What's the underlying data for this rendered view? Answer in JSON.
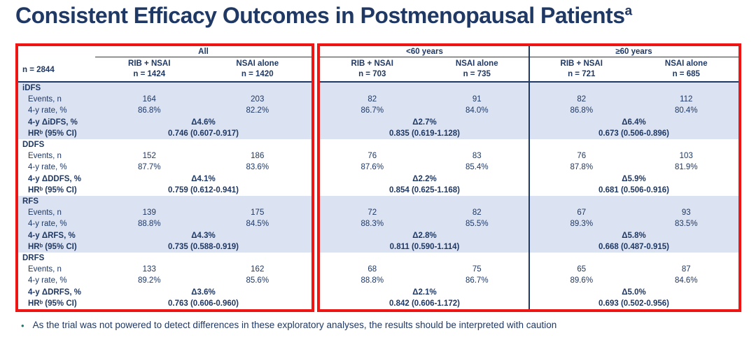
{
  "title": {
    "text": "Consistent Efficacy Outcomes in Postmenopausal Patients",
    "superscript": "a"
  },
  "colors": {
    "navy": "#1F3864",
    "stripe": "#DBE3F2",
    "red": "#EE1515",
    "bullet": "#1E7A6E"
  },
  "table": {
    "n_label": "n = 2844",
    "groups": [
      {
        "label": "All",
        "columns": [
          {
            "arm": "RIB + NSAI",
            "n": "n = 1424"
          },
          {
            "arm": "NSAI alone",
            "n": "n = 1420"
          }
        ]
      },
      {
        "label": "<60 years",
        "columns": [
          {
            "arm": "RIB + NSAI",
            "n": "n = 703"
          },
          {
            "arm": "NSAI alone",
            "n": "n = 735"
          }
        ]
      },
      {
        "label": "≥60 years",
        "columns": [
          {
            "arm": "RIB + NSAI",
            "n": "n = 721"
          },
          {
            "arm": "NSAI alone",
            "n": "n = 685"
          }
        ]
      }
    ],
    "row_labels": {
      "events": "Events, n",
      "rate": "4-y rate, %",
      "hr": "HRᵇ (95% CI)"
    },
    "sections": [
      {
        "name": "iDFS",
        "delta_label": "4-y ΔiDFS, %",
        "shaded": true,
        "groups": [
          {
            "events": [
              "164",
              "203"
            ],
            "rates": [
              "86.8%",
              "82.2%"
            ],
            "delta": "Δ4.6%",
            "hr": "0.746 (0.607-0.917)"
          },
          {
            "events": [
              "82",
              "91"
            ],
            "rates": [
              "86.7%",
              "84.0%"
            ],
            "delta": "Δ2.7%",
            "hr": "0.835 (0.619-1.128)"
          },
          {
            "events": [
              "82",
              "112"
            ],
            "rates": [
              "86.8%",
              "80.4%"
            ],
            "delta": "Δ6.4%",
            "hr": "0.673 (0.506-0.896)"
          }
        ]
      },
      {
        "name": "DDFS",
        "delta_label": "4-y ΔDDFS, %",
        "shaded": false,
        "groups": [
          {
            "events": [
              "152",
              "186"
            ],
            "rates": [
              "87.7%",
              "83.6%"
            ],
            "delta": "Δ4.1%",
            "hr": "0.759 (0.612-0.941)"
          },
          {
            "events": [
              "76",
              "83"
            ],
            "rates": [
              "87.6%",
              "85.4%"
            ],
            "delta": "Δ2.2%",
            "hr": "0.854 (0.625-1.168)"
          },
          {
            "events": [
              "76",
              "103"
            ],
            "rates": [
              "87.8%",
              "81.9%"
            ],
            "delta": "Δ5.9%",
            "hr": "0.681 (0.506-0.916)"
          }
        ]
      },
      {
        "name": "RFS",
        "delta_label": "4-y ΔRFS, %",
        "shaded": true,
        "groups": [
          {
            "events": [
              "139",
              "175"
            ],
            "rates": [
              "88.8%",
              "84.5%"
            ],
            "delta": "Δ4.3%",
            "hr": "0.735 (0.588-0.919)"
          },
          {
            "events": [
              "72",
              "82"
            ],
            "rates": [
              "88.3%",
              "85.5%"
            ],
            "delta": "Δ2.8%",
            "hr": "0.811 (0.590-1.114)"
          },
          {
            "events": [
              "67",
              "93"
            ],
            "rates": [
              "89.3%",
              "83.5%"
            ],
            "delta": "Δ5.8%",
            "hr": "0.668 (0.487-0.915)"
          }
        ]
      },
      {
        "name": "DRFS",
        "delta_label": "4-y ΔDRFS, %",
        "shaded": false,
        "groups": [
          {
            "events": [
              "133",
              "162"
            ],
            "rates": [
              "89.2%",
              "85.6%"
            ],
            "delta": "Δ3.6%",
            "hr": "0.763 (0.606-0.960)"
          },
          {
            "events": [
              "68",
              "75"
            ],
            "rates": [
              "88.8%",
              "86.7%"
            ],
            "delta": "Δ2.1%",
            "hr": "0.842 (0.606-1.172)"
          },
          {
            "events": [
              "65",
              "87"
            ],
            "rates": [
              "89.6%",
              "84.6%"
            ],
            "delta": "Δ5.0%",
            "hr": "0.693 (0.502-0.956)"
          }
        ]
      }
    ]
  },
  "footer": {
    "bullet": "•",
    "text": "As the trial was not powered to detect differences in these exploratory analyses, the results should be interpreted with caution"
  }
}
